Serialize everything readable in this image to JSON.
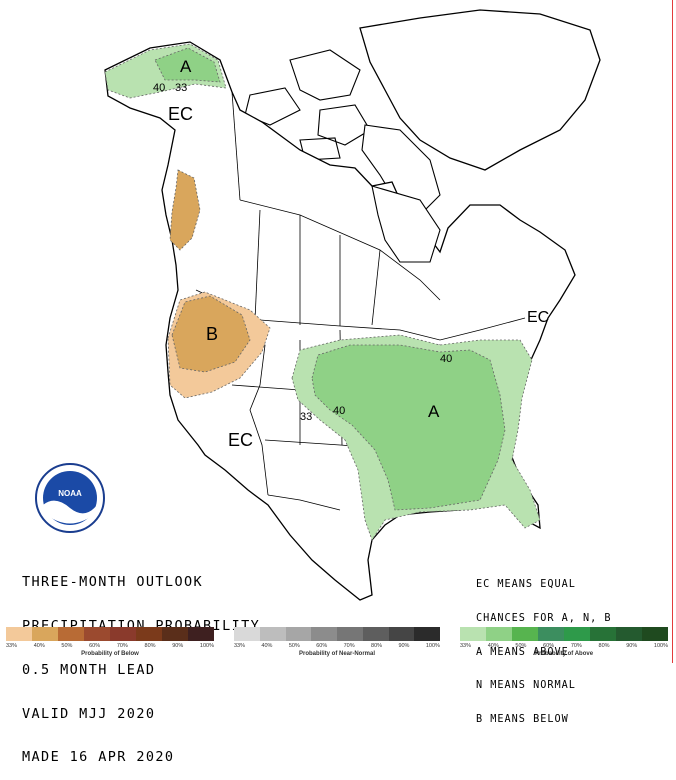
{
  "title_lines": [
    "THREE-MONTH OUTLOOK",
    "PRECIPITATION PROBABILITY",
    "0.5 MONTH LEAD",
    "VALID MJJ 2020",
    "MADE 16 APR 2020"
  ],
  "legend_lines": [
    "EC MEANS EQUAL",
    "CHANCES FOR A, N, B",
    "A MEANS ABOVE",
    "N MEANS NORMAL",
    "B MEANS BELOW"
  ],
  "map_labels": {
    "alaska_a": "A",
    "alaska_contour_40": "40",
    "alaska_contour_33": "33",
    "alaska_ec": "EC",
    "northwest_b": "B",
    "southwest_ec": "EC",
    "central_a": "A",
    "central_contour_33": "33",
    "central_contour_40": "40",
    "east_contour_40": "40",
    "northeast_ec": "EC"
  },
  "logo_text": "NOAA",
  "scales": [
    {
      "caption": "Probability of Below",
      "ticks": [
        "33%",
        "40%",
        "50%",
        "60%",
        "70%",
        "80%",
        "90%",
        "100%"
      ],
      "colors": [
        "#f3c99a",
        "#d9a65c",
        "#b86b35",
        "#9b4a2f",
        "#8a3a2c",
        "#7b3a1b",
        "#5a2e1a",
        "#3e2020"
      ]
    },
    {
      "caption": "Probability of Near-Normal",
      "ticks": [
        "33%",
        "40%",
        "50%",
        "60%",
        "70%",
        "80%",
        "90%",
        "100%"
      ],
      "colors": [
        "#d9d9d9",
        "#bdbdbd",
        "#a6a6a6",
        "#8c8c8c",
        "#767676",
        "#5e5e5e",
        "#454545",
        "#2b2b2b"
      ]
    },
    {
      "caption": "Probability of Above",
      "ticks": [
        "33%",
        "40%",
        "50%",
        "60%",
        "70%",
        "80%",
        "90%",
        "100%"
      ],
      "colors": [
        "#b9e2b0",
        "#8fd186",
        "#57b44f",
        "#3c8e5f",
        "#2e9a4a",
        "#277237",
        "#245a2f",
        "#1f4a1f"
      ]
    }
  ],
  "colors": {
    "above_33": "#b9e2b0",
    "above_40": "#8fd186",
    "below_33": "#f3c99a",
    "below_40": "#d9a65c"
  }
}
